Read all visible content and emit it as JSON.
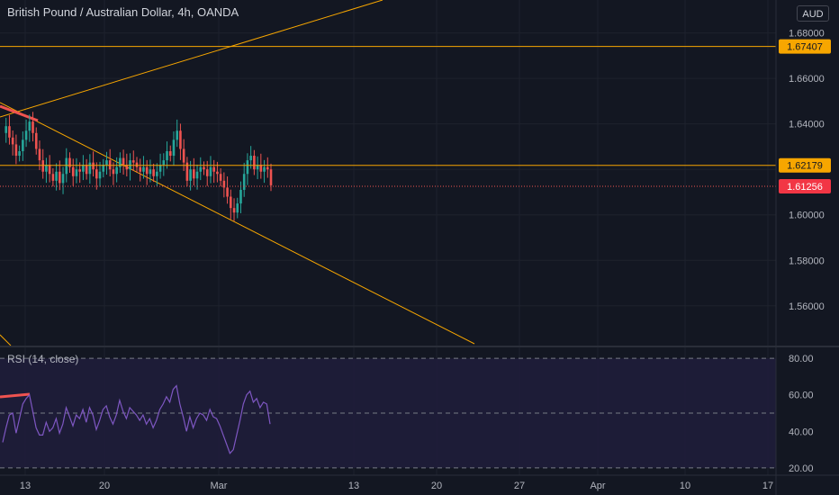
{
  "header": {
    "title": "British Pound / Australian Dollar, 4h, OANDA",
    "currency": "AUD"
  },
  "rsi_panel": {
    "title": "RSI (14, close)"
  },
  "colors": {
    "background": "#131722",
    "up_candle": "#26a69a",
    "down_candle": "#ef5350",
    "orange_line": "#f7a600",
    "rsi_line": "#7e57c2",
    "rsi_band": "#1f1d3a",
    "last_price_badge": "#f23645",
    "level_badge": "#f7a600"
  },
  "chart_data": [
    {
      "type": "candlestick",
      "symbol": "GBPAUD",
      "interval": "4h",
      "ylim": [
        1.5425,
        1.6945
      ],
      "y_ticks": [
        "1.68000",
        "1.66000",
        "1.64000",
        "1.60000",
        "1.58000",
        "1.56000"
      ],
      "y_tick_values": [
        1.68,
        1.66,
        1.64,
        1.6,
        1.58,
        1.56
      ],
      "x_ticks": [
        "13",
        "20",
        "Mar",
        "13",
        "20",
        "27",
        "Apr",
        "10",
        "17"
      ],
      "horizontal_levels": [
        {
          "value": 1.67407,
          "label": "1.67407"
        },
        {
          "value": 1.62179,
          "label": "1.62179"
        }
      ],
      "last_price": {
        "value": 1.61256,
        "label": "1.61256"
      },
      "price_path": [
        1.636,
        1.639,
        1.634,
        1.631,
        1.626,
        1.628,
        1.633,
        1.637,
        1.641,
        1.636,
        1.629,
        1.624,
        1.619,
        1.622,
        1.618,
        1.615,
        1.619,
        1.614,
        1.618,
        1.625,
        1.621,
        1.617,
        1.62,
        1.619,
        1.622,
        1.618,
        1.623,
        1.62,
        1.616,
        1.619,
        1.622,
        1.624,
        1.62,
        1.618,
        1.621,
        1.625,
        1.622,
        1.62,
        1.624,
        1.623,
        1.621,
        1.619,
        1.621,
        1.618,
        1.62,
        1.617,
        1.619,
        1.622,
        1.624,
        1.628,
        1.626,
        1.633,
        1.637,
        1.629,
        1.623,
        1.615,
        1.62,
        1.616,
        1.619,
        1.621,
        1.62,
        1.617,
        1.621,
        1.619,
        1.618,
        1.615,
        1.612,
        1.608,
        1.603,
        1.601,
        1.605,
        1.611,
        1.618,
        1.624,
        1.626,
        1.62,
        1.622,
        1.619,
        1.621,
        1.62,
        1.613
      ]
    },
    {
      "type": "line",
      "name": "RSI (14, close)",
      "ylim": [
        16,
        86
      ],
      "y_ticks": [
        "80.00",
        "60.00",
        "40.00",
        "20.00"
      ],
      "y_tick_values": [
        80,
        60,
        40,
        20
      ],
      "guide_levels": [
        80,
        50,
        20
      ],
      "values": [
        34,
        42,
        49,
        50,
        39,
        47,
        55,
        58,
        60,
        51,
        42,
        38,
        38,
        45,
        40,
        42,
        47,
        39,
        44,
        53,
        48,
        43,
        49,
        47,
        52,
        45,
        53,
        49,
        41,
        46,
        52,
        54,
        48,
        44,
        49,
        57,
        51,
        47,
        53,
        51,
        49,
        46,
        49,
        44,
        47,
        42,
        46,
        52,
        55,
        59,
        56,
        63,
        65,
        55,
        48,
        40,
        48,
        42,
        47,
        50,
        49,
        46,
        52,
        48,
        47,
        43,
        38,
        33,
        28,
        30,
        38,
        46,
        55,
        60,
        62,
        56,
        58,
        53,
        56,
        55,
        44
      ]
    }
  ]
}
